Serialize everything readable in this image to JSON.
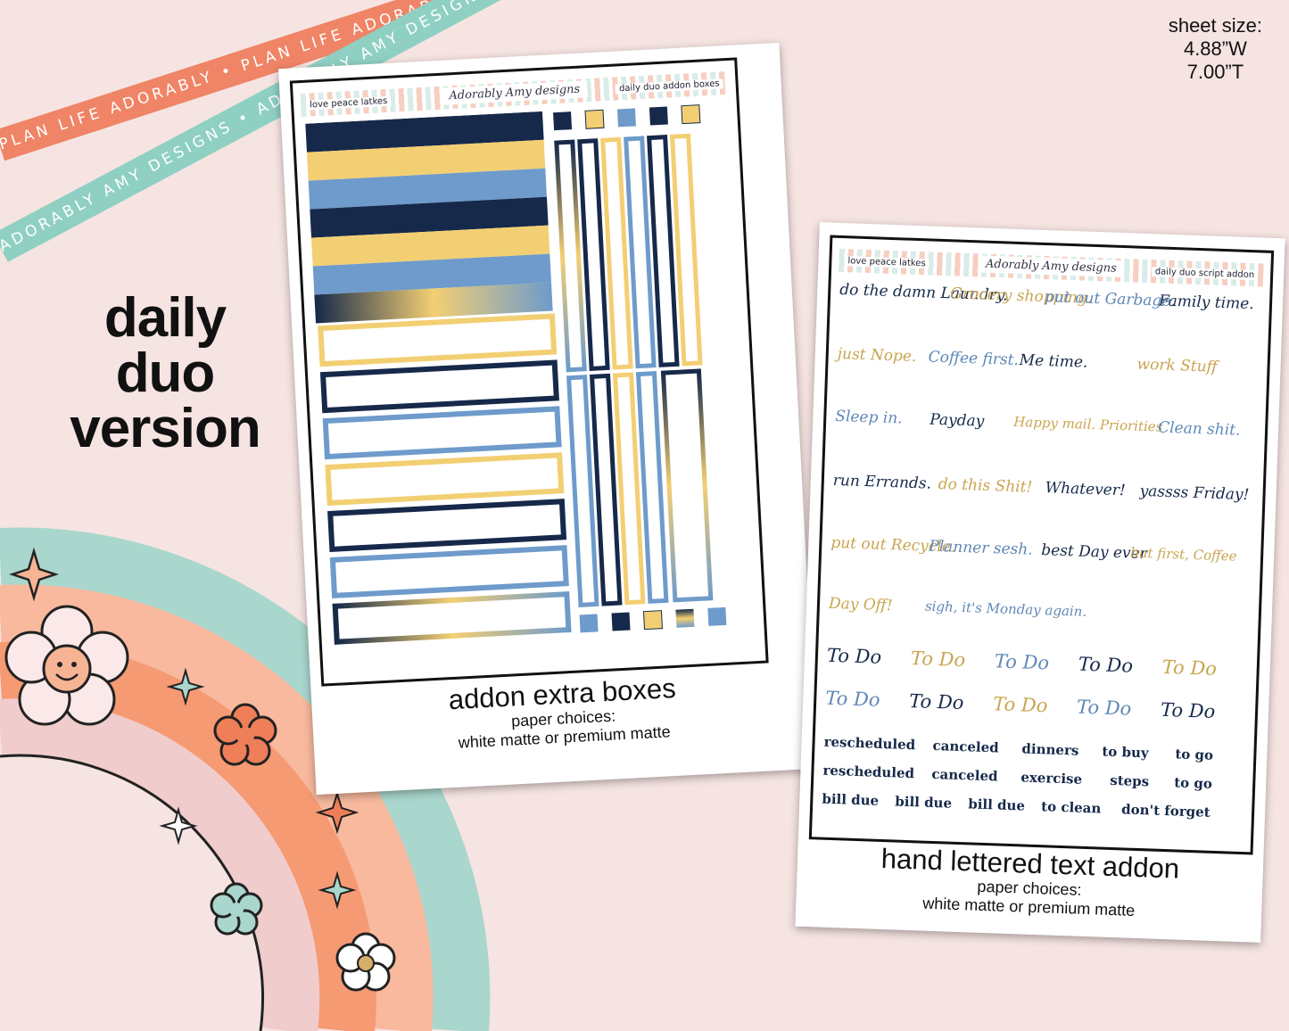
{
  "ribbons": {
    "top": "PLAN LIFE ADORABLY • PLAN LIFE ADORABLY • PLAN LIFE ADORABLY",
    "bottom": "ADORABLY AMY DESIGNS • ADORABLY AMY DESIGNS • ADORABLY AMY DESIGNS • AD"
  },
  "headline": [
    "daily",
    "duo",
    "version"
  ],
  "sheet_size": {
    "label": "sheet size:",
    "width": "4.88”W",
    "height": "7.00”T"
  },
  "palette": {
    "navy": "#16294a",
    "gold": "#f3cf73",
    "blue": "#6e9bcb",
    "white": "#ffffff"
  },
  "boxes_sheet": {
    "theme_name": "love peace latkes",
    "brand": "Adorably Amy designs",
    "sheet_name": "daily duo addon boxes",
    "caption_title": "addon extra boxes",
    "caption_sub1": "paper choices:",
    "caption_sub2": "white matte or premium matte"
  },
  "text_sheet": {
    "theme_name": "love peace latkes",
    "brand": "Adorably Amy designs",
    "sheet_name": "daily duo script addon",
    "caption_title": "hand lettered text addon",
    "caption_sub1": "paper choices:",
    "caption_sub2": "white matte or premium matte",
    "scripts": [
      "do the damn Laundry.",
      "Grocery shopping.",
      "put out Garbage.",
      "Family time.",
      "just Nope.",
      "Coffee first.",
      "Me time.",
      "work Stuff",
      "Sleep in.",
      "Payday",
      "Happy mail. Priorities",
      "Clean shit.",
      "run Errands.",
      "do this Shit!",
      "Whatever!",
      "yassss Friday!",
      "put out Recycle.",
      "Planner sesh.",
      "best Day ever",
      "but first, Coffee",
      "Day Off!",
      "sigh, it's Monday again."
    ],
    "todo": "To Do",
    "labels_row1": [
      "rescheduled",
      "canceled",
      "dinners",
      "to buy",
      "to go"
    ],
    "labels_row2": [
      "rescheduled",
      "canceled",
      "exercise",
      "steps",
      "to go"
    ],
    "labels_row3": [
      "bill due",
      "bill due",
      "bill due",
      "to clean",
      "don't forget"
    ]
  }
}
